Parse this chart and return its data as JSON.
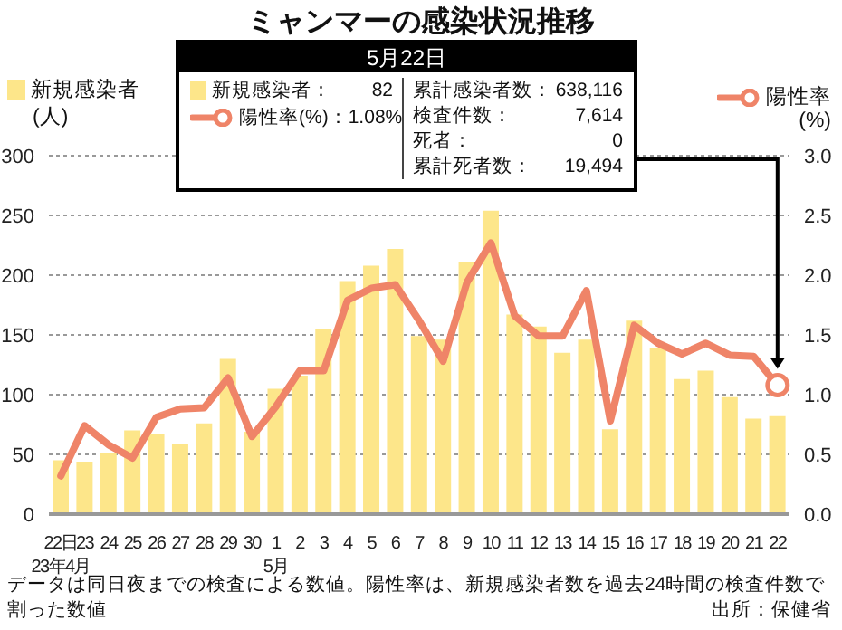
{
  "chart_data": {
    "type": "bar",
    "title": "ミャンマーの感染状況推移",
    "categories": [
      "22日\n23年4月",
      "23",
      "24",
      "25",
      "26",
      "27",
      "28",
      "29",
      "30",
      "1\n5月",
      "2",
      "3",
      "4",
      "5",
      "6",
      "7",
      "8",
      "9",
      "10",
      "11",
      "12",
      "13",
      "14",
      "15",
      "16",
      "17",
      "18",
      "19",
      "20",
      "21",
      "22"
    ],
    "series": [
      {
        "name": "新規感染者",
        "color": "#fde68a",
        "values": [
          45,
          44,
          51,
          70,
          67,
          59,
          76,
          130,
          69,
          105,
          116,
          155,
          195,
          208,
          222,
          149,
          146,
          211,
          254,
          167,
          157,
          135,
          146,
          71,
          162,
          139,
          113,
          120,
          98,
          80,
          82
        ]
      },
      {
        "name": "陽性率",
        "type": "line",
        "axis": "y2",
        "color": "#ef8468",
        "values": [
          0.32,
          0.74,
          0.58,
          0.47,
          0.81,
          0.88,
          0.89,
          1.14,
          0.65,
          0.9,
          1.2,
          1.2,
          1.79,
          1.89,
          1.92,
          1.62,
          1.28,
          1.94,
          2.27,
          1.66,
          1.49,
          1.49,
          1.87,
          0.78,
          1.58,
          1.43,
          1.34,
          1.43,
          1.33,
          1.32,
          1.08
        ]
      }
    ],
    "ylabel": "(人)",
    "y2label": "(%)",
    "ylim": [
      0,
      300
    ],
    "yticks": [
      0,
      50,
      100,
      150,
      200,
      250,
      300
    ],
    "y2lim": [
      0,
      3
    ],
    "y2ticks": [
      {
        "value": 0,
        "label": "0.0"
      },
      {
        "value": 0.5,
        "label": "0.5"
      },
      {
        "value": 1,
        "label": "1.0"
      },
      {
        "value": 1.5,
        "label": "1.5"
      },
      {
        "value": 2,
        "label": "2.0"
      },
      {
        "value": 2.5,
        "label": "2.5"
      },
      {
        "value": 3,
        "label": "3.0"
      }
    ],
    "grid": "y",
    "legend": "top",
    "marker": "none",
    "line_style": "solid",
    "annotations": [
      "5月22日",
      "新規感染者：",
      "82",
      "陽性率(%)：",
      "1.08%",
      "累計感染者数：",
      "638,116",
      "検査件数：",
      "7,614",
      "死者：",
      "0",
      "累計死者数：",
      "19,494",
      "データは同日夜までの検査による数値。陽性率は、新規感染者数を過去24時間の検査件数で割った数値",
      "出所：保健省"
    ]
  }
}
